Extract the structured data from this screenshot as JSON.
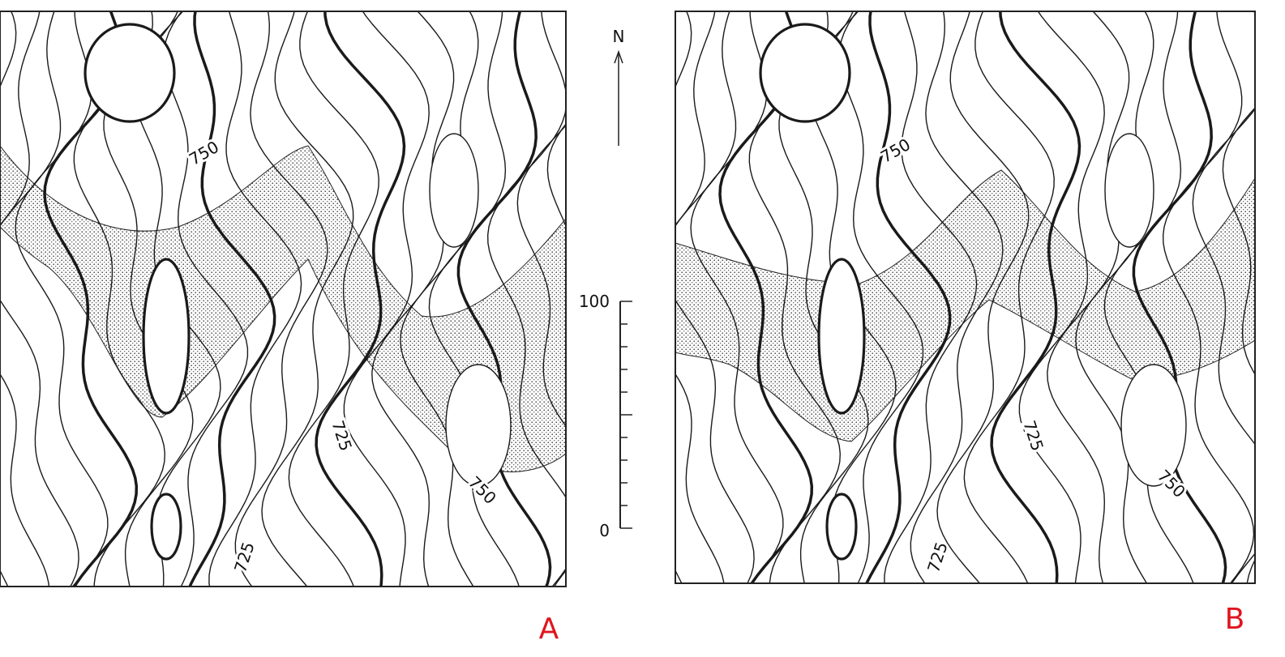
{
  "panels": [
    {
      "label": "A",
      "contour_labels": [
        "750",
        "725",
        "725",
        "750"
      ]
    },
    {
      "label": "B",
      "contour_labels": [
        "750",
        "725",
        "725",
        "750"
      ]
    }
  ],
  "north_arrow": {
    "label": "N"
  },
  "scale_bar": {
    "labels": [
      "100",
      "0"
    ]
  }
}
